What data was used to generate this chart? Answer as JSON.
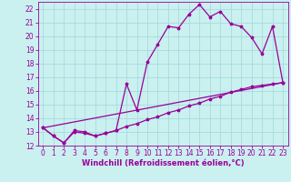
{
  "xlabel": "Windchill (Refroidissement éolien,°C)",
  "background_color": "#caf0f0",
  "line_color": "#990099",
  "xlim": [
    -0.5,
    23.5
  ],
  "ylim": [
    12,
    22.5
  ],
  "xticks": [
    0,
    1,
    2,
    3,
    4,
    5,
    6,
    7,
    8,
    9,
    10,
    11,
    12,
    13,
    14,
    15,
    16,
    17,
    18,
    19,
    20,
    21,
    22,
    23
  ],
  "yticks": [
    12,
    13,
    14,
    15,
    16,
    17,
    18,
    19,
    20,
    21,
    22
  ],
  "line1_x": [
    0,
    1,
    2,
    3,
    4,
    5,
    6,
    7,
    8,
    9,
    10,
    11,
    12,
    13,
    14,
    15,
    16,
    17,
    18,
    19,
    20,
    21,
    22,
    23
  ],
  "line1_y": [
    13.3,
    12.7,
    12.2,
    13.1,
    13.0,
    12.7,
    12.9,
    13.1,
    16.5,
    14.6,
    18.1,
    19.4,
    20.7,
    20.6,
    21.6,
    22.3,
    21.4,
    21.8,
    20.9,
    20.7,
    19.9,
    18.7,
    20.7,
    16.6
  ],
  "line2_x": [
    0,
    23
  ],
  "line2_y": [
    13.3,
    16.6
  ],
  "line3_x": [
    0,
    1,
    2,
    3,
    4,
    5,
    6,
    7,
    8,
    9,
    10,
    11,
    12,
    13,
    14,
    15,
    16,
    17,
    18,
    19,
    20,
    21,
    22,
    23
  ],
  "line3_y": [
    13.3,
    12.7,
    12.2,
    13.0,
    12.9,
    12.7,
    12.9,
    13.1,
    13.4,
    13.6,
    13.9,
    14.1,
    14.4,
    14.6,
    14.9,
    15.1,
    15.4,
    15.6,
    15.9,
    16.1,
    16.3,
    16.4,
    16.5,
    16.6
  ],
  "grid_color": "#a0d8d8",
  "xlabel_fontsize": 6,
  "tick_fontsize": 5.5,
  "linewidth": 0.9,
  "markersize": 2.5
}
